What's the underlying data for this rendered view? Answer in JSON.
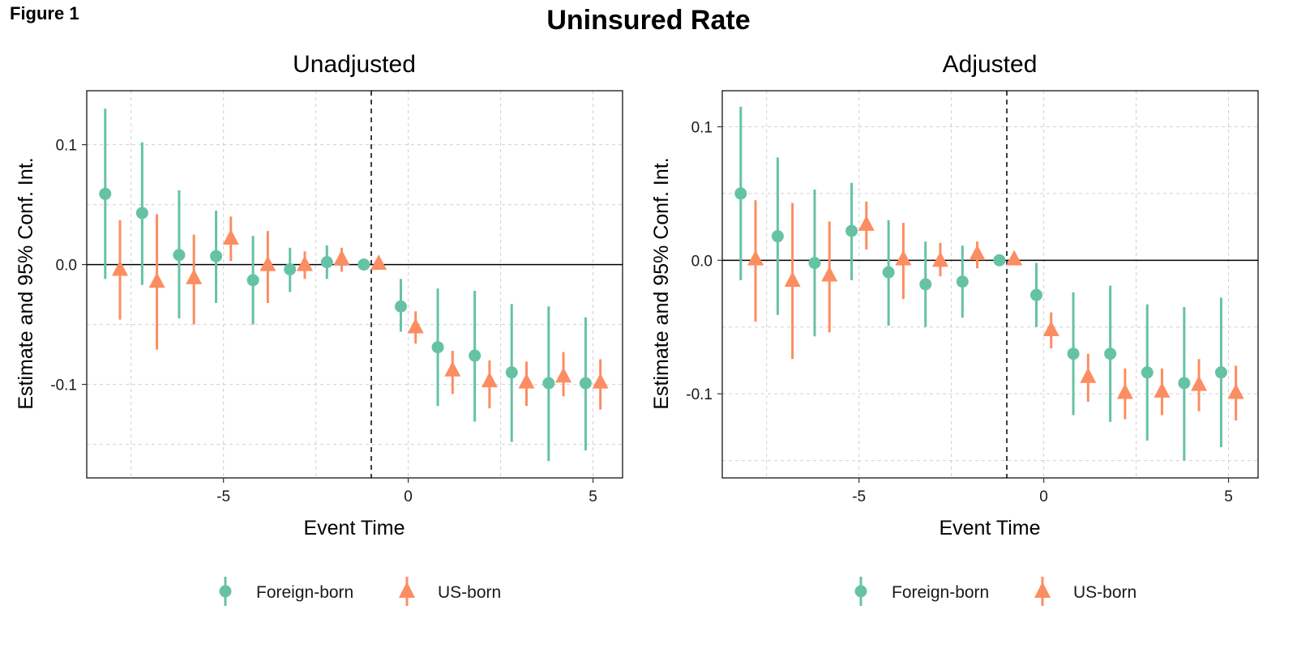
{
  "figure_label": "Figure 1",
  "main_title": "Uninsured Rate",
  "colors": {
    "foreign_born": "#66C2A5",
    "us_born": "#FC8D62"
  },
  "chart_data": [
    {
      "type": "scatter",
      "subtype": "event-study point estimates with 95% CI",
      "title": "Unadjusted",
      "xlabel": "Event Time",
      "ylabel": "Estimate and 95% Conf. Int.",
      "xlim": [
        -8.7,
        5.8
      ],
      "ylim": [
        -0.178,
        0.145
      ],
      "x_ticks": [
        -5,
        0,
        5
      ],
      "x_tick_labels": [
        "-5",
        "0",
        "5"
      ],
      "y_ticks": [
        0.1,
        0.0,
        -0.1
      ],
      "y_tick_labels": [
        "0.1",
        "0.0",
        "-0.1"
      ],
      "grid": true,
      "reference_lines": {
        "horizontal": 0,
        "vertical_dashed": -1
      },
      "legend": {
        "position": "bottom",
        "entries": [
          "Foreign-born",
          "US-born"
        ]
      },
      "series": [
        {
          "name": "Foreign-born",
          "marker": "circle",
          "x": [
            -8,
            -7,
            -6,
            -5,
            -4,
            -3,
            -2,
            -1,
            0,
            1,
            2,
            3,
            4,
            5
          ],
          "y": [
            0.059,
            0.043,
            0.008,
            0.007,
            -0.013,
            -0.004,
            0.002,
            0.0,
            -0.035,
            -0.069,
            -0.076,
            -0.09,
            -0.099,
            -0.099
          ],
          "ci_low": [
            -0.012,
            -0.017,
            -0.045,
            -0.032,
            -0.05,
            -0.023,
            -0.012,
            0.0,
            -0.056,
            -0.118,
            -0.131,
            -0.148,
            -0.164,
            -0.155
          ],
          "ci_high": [
            0.13,
            0.102,
            0.062,
            0.045,
            0.024,
            0.014,
            0.016,
            0.0,
            -0.012,
            -0.02,
            -0.022,
            -0.033,
            -0.035,
            -0.044
          ]
        },
        {
          "name": "US-born",
          "marker": "triangle",
          "x": [
            -8,
            -7,
            -6,
            -5,
            -4,
            -3,
            -2,
            -1,
            0,
            1,
            2,
            3,
            4,
            5
          ],
          "y": [
            -0.004,
            -0.014,
            -0.011,
            0.022,
            0.0,
            0.0,
            0.005,
            0.001,
            -0.052,
            -0.088,
            -0.097,
            -0.098,
            -0.093,
            -0.098
          ],
          "ci_low": [
            -0.046,
            -0.071,
            -0.05,
            0.003,
            -0.032,
            -0.012,
            -0.006,
            -0.001,
            -0.066,
            -0.108,
            -0.12,
            -0.118,
            -0.11,
            -0.121
          ],
          "ci_high": [
            0.037,
            0.042,
            0.025,
            0.04,
            0.028,
            0.011,
            0.014,
            0.003,
            -0.039,
            -0.072,
            -0.08,
            -0.081,
            -0.073,
            -0.079
          ]
        }
      ]
    },
    {
      "type": "scatter",
      "subtype": "event-study point estimates with 95% CI",
      "title": "Adjusted",
      "xlabel": "Event Time",
      "ylabel": "Estimate and 95% Conf. Int.",
      "xlim": [
        -8.7,
        5.8
      ],
      "ylim": [
        -0.163,
        0.127
      ],
      "x_ticks": [
        -5,
        0,
        5
      ],
      "x_tick_labels": [
        "-5",
        "0",
        "5"
      ],
      "y_ticks": [
        0.1,
        0.0,
        -0.1
      ],
      "y_tick_labels": [
        "0.1",
        "0.0",
        "-0.1"
      ],
      "grid": true,
      "reference_lines": {
        "horizontal": 0,
        "vertical_dashed": -1
      },
      "legend": {
        "position": "bottom",
        "entries": [
          "Foreign-born",
          "US-born"
        ]
      },
      "series": [
        {
          "name": "Foreign-born",
          "marker": "circle",
          "x": [
            -8,
            -7,
            -6,
            -5,
            -4,
            -3,
            -2,
            -1,
            0,
            1,
            2,
            3,
            4,
            5
          ],
          "y": [
            0.05,
            0.018,
            -0.002,
            0.022,
            -0.009,
            -0.018,
            -0.016,
            0.0,
            -0.026,
            -0.07,
            -0.07,
            -0.084,
            -0.092,
            -0.084
          ],
          "ci_low": [
            -0.015,
            -0.041,
            -0.057,
            -0.015,
            -0.049,
            -0.05,
            -0.043,
            0.0,
            -0.05,
            -0.116,
            -0.121,
            -0.135,
            -0.15,
            -0.14
          ],
          "ci_high": [
            0.115,
            0.077,
            0.053,
            0.058,
            0.03,
            0.014,
            0.011,
            0.0,
            -0.002,
            -0.024,
            -0.019,
            -0.033,
            -0.035,
            -0.028
          ]
        },
        {
          "name": "US-born",
          "marker": "triangle",
          "x": [
            -8,
            -7,
            -6,
            -5,
            -4,
            -3,
            -2,
            -1,
            0,
            1,
            2,
            3,
            4,
            5
          ],
          "y": [
            0.001,
            -0.015,
            -0.011,
            0.027,
            0.001,
            0.0,
            0.005,
            0.001,
            -0.052,
            -0.087,
            -0.099,
            -0.098,
            -0.093,
            -0.099
          ],
          "ci_low": [
            -0.046,
            -0.074,
            -0.054,
            0.008,
            -0.029,
            -0.012,
            -0.006,
            -0.001,
            -0.066,
            -0.106,
            -0.119,
            -0.116,
            -0.113,
            -0.12
          ],
          "ci_high": [
            0.045,
            0.043,
            0.029,
            0.044,
            0.028,
            0.013,
            0.014,
            0.003,
            -0.039,
            -0.07,
            -0.081,
            -0.081,
            -0.074,
            -0.079
          ]
        }
      ]
    }
  ]
}
